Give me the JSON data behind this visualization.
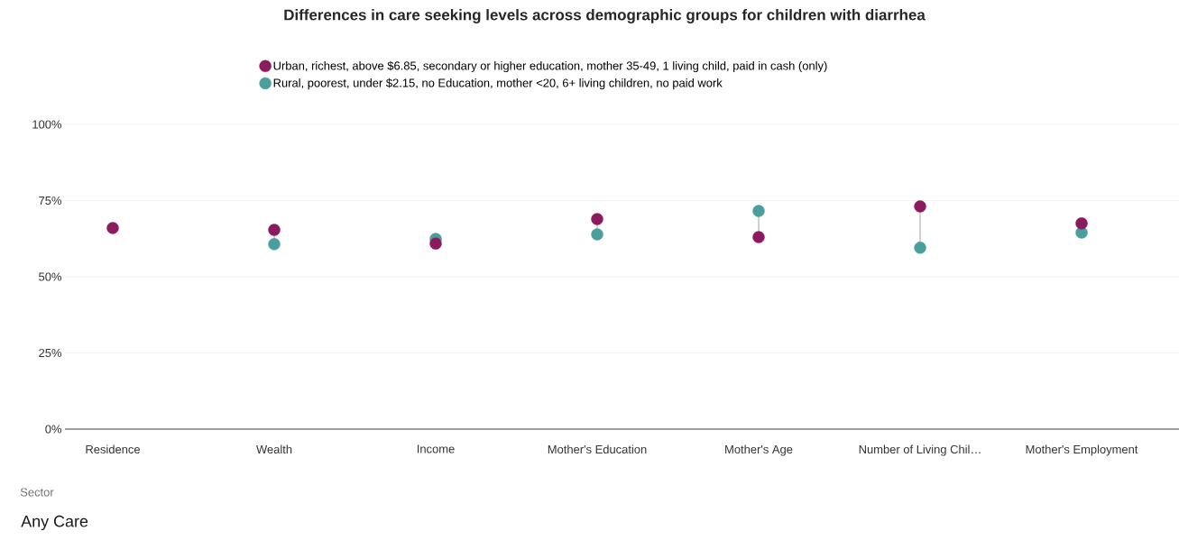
{
  "chart_data": {
    "type": "scatter",
    "title": "Differences in care seeking levels across demographic groups for children with diarrhea",
    "categories": [
      "Residence",
      "Wealth",
      "Income",
      "Mother's Education",
      "Mother's Age",
      "Number of Living Chil…",
      "Mother's Employment"
    ],
    "series": [
      {
        "name": "Urban, richest, above $6.85, secondary or higher education, mother 35-49, 1 living child, paid in cash (only)",
        "color": "#8b1a5e",
        "values": [
          66.0,
          65.4,
          60.9,
          68.9,
          63.0,
          73.1,
          67.5
        ]
      },
      {
        "name": "Rural, poorest, under $2.15, no Education, mother <20, 6+ living children, no paid work",
        "color": "#4a9f9c",
        "values": [
          null,
          60.7,
          62.4,
          63.9,
          71.6,
          59.5,
          64.5
        ]
      }
    ],
    "ylim": [
      0,
      100
    ],
    "yticks": [
      {
        "value": 0,
        "label": "0%"
      },
      {
        "value": 25,
        "label": "25%"
      },
      {
        "value": 50,
        "label": "50%"
      },
      {
        "value": 75,
        "label": "75%"
      },
      {
        "value": 100,
        "label": "100%"
      }
    ],
    "grid": "y",
    "legend": "top",
    "marker": "circle",
    "annotations": [
      "Sector",
      "Any Care"
    ]
  }
}
